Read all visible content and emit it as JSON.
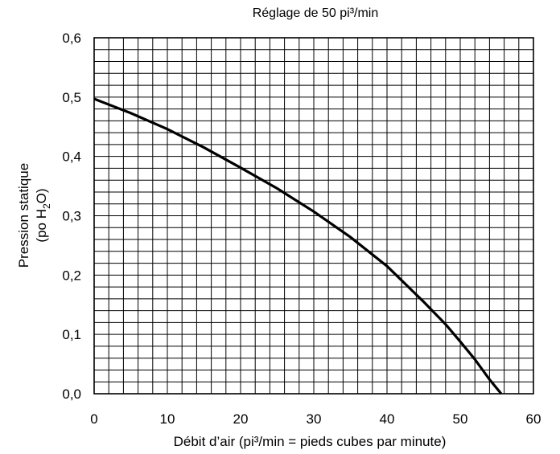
{
  "chart_data": {
    "type": "line",
    "title": "Réglage de 50 pi³/min",
    "xlabel": "Débit d’air (pi³/min = pieds cubes par minute)",
    "ylabel_line1": "Pression statique",
    "ylabel_line2_prefix": "(po H",
    "ylabel_line2_sub": "2",
    "ylabel_line2_suffix": "O)",
    "xlim": [
      0,
      60
    ],
    "ylim": [
      0,
      0.6
    ],
    "x_ticks": [
      0,
      10,
      20,
      30,
      40,
      50,
      60
    ],
    "x_tick_labels": [
      "0",
      "10",
      "20",
      "30",
      "40",
      "50",
      "60"
    ],
    "y_ticks": [
      0,
      0.1,
      0.2,
      0.3,
      0.4,
      0.5,
      0.6
    ],
    "y_tick_labels": [
      "0,0",
      "0,1",
      "0,2",
      "0,3",
      "0,4",
      "0,5",
      "0,6"
    ],
    "grid": true,
    "grid_minor_x_step": 2,
    "grid_minor_y_step": 0.02,
    "series": [
      {
        "x": [
          0,
          5,
          10,
          15,
          20,
          25,
          30,
          35,
          40,
          45,
          48,
          50,
          52,
          54,
          55.6
        ],
        "y": [
          0.497,
          0.473,
          0.446,
          0.415,
          0.381,
          0.346,
          0.307,
          0.264,
          0.215,
          0.155,
          0.117,
          0.088,
          0.058,
          0.024,
          0.0
        ]
      }
    ]
  }
}
